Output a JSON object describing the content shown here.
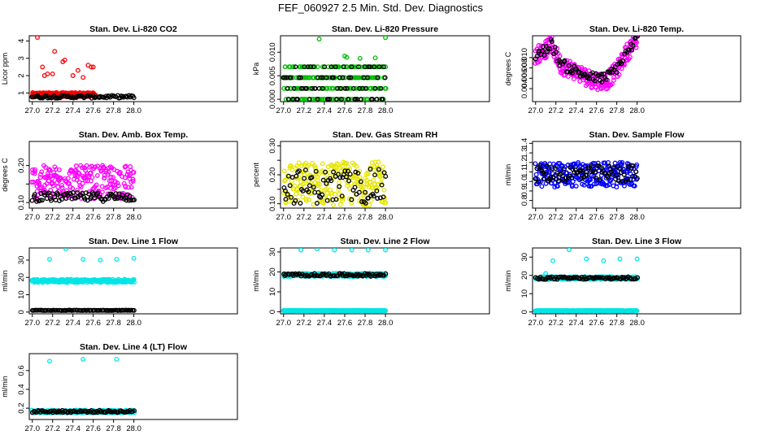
{
  "figure_title": "FEF_060927  2.5 Min. Std. Dev. Diagnostics",
  "chart_data": [
    {
      "type": "scatter",
      "title": "Stan. Dev. Li-820 CO2",
      "ylabel": "Licor ppm",
      "xlim": [
        26.97,
        29.02
      ],
      "ylim": [
        0.5,
        4.3
      ],
      "xticks": [
        27.0,
        27.2,
        27.4,
        27.6,
        27.8,
        28.0
      ],
      "yticks": [
        1,
        2,
        3,
        4
      ],
      "ytick_labels": [
        "1",
        "2",
        "3",
        "4"
      ],
      "series": [
        {
          "name": "red",
          "color": "#ff0000",
          "base": 0.9,
          "spread": 0.12,
          "spikes": [
            [
              27.05,
              4.2
            ],
            [
              27.1,
              2.5
            ],
            [
              27.15,
              2.1
            ],
            [
              27.22,
              3.4
            ],
            [
              27.3,
              2.8
            ],
            [
              27.32,
              2.9
            ],
            [
              27.45,
              2.3
            ],
            [
              27.55,
              2.6
            ],
            [
              27.58,
              2.5
            ],
            [
              27.6,
              2.5
            ],
            [
              27.2,
              2.1
            ],
            [
              27.12,
              2.0
            ],
            [
              27.4,
              2.0
            ],
            [
              27.5,
              1.9
            ]
          ],
          "x_end": 27.62
        },
        {
          "name": "black",
          "color": "#000000",
          "base": 0.78,
          "spread": 0.08,
          "spikes": []
        }
      ]
    },
    {
      "type": "scatter",
      "title": "Stan. Dev. Li-820 Pressure",
      "ylabel": "kPa",
      "xlim": [
        26.97,
        29.02
      ],
      "ylim": [
        -0.0005,
        0.0135
      ],
      "xticks": [
        27.0,
        27.2,
        27.4,
        27.6,
        27.8,
        28.0
      ],
      "yticks": [
        0.0,
        0.005,
        0.01
      ],
      "ytick_labels": [
        "0.000",
        "0.005",
        "0.010"
      ],
      "series": [
        {
          "name": "green",
          "color": "#00bb00",
          "levels": [
            0.0,
            0.0023,
            0.0046,
            0.0069
          ],
          "spikes": [
            [
              27.35,
              0.0128
            ],
            [
              28.0,
              0.0131
            ],
            [
              27.6,
              0.0092
            ],
            [
              27.62,
              0.0089
            ],
            [
              27.75,
              0.0087
            ],
            [
              27.9,
              0.0088
            ]
          ]
        },
        {
          "name": "black",
          "color": "#000000",
          "levels": [
            0.0,
            0.0023,
            0.0046,
            0.0069
          ],
          "spikes": []
        }
      ]
    },
    {
      "type": "scatter",
      "title": "Stan. Dev. Li-820 Temp.",
      "ylabel": "degrees C",
      "xlim": [
        26.97,
        29.02
      ],
      "ylim": [
        0.0015,
        0.0142
      ],
      "xticks": [
        27.0,
        27.2,
        27.4,
        27.6,
        27.8,
        28.0
      ],
      "yticks": [
        0.004,
        0.006,
        0.008,
        0.01
      ],
      "ytick_labels": [
        "0.004",
        "0.006",
        "0.008",
        "0.010"
      ],
      "series": [
        {
          "name": "magenta",
          "color": "#ff00ff",
          "trend": [
            [
              27.0,
              0.0105
            ],
            [
              27.1,
              0.0115
            ],
            [
              27.15,
              0.0128
            ],
            [
              27.25,
              0.0085
            ],
            [
              27.35,
              0.0078
            ],
            [
              27.5,
              0.0062
            ],
            [
              27.6,
              0.0055
            ],
            [
              27.7,
              0.0055
            ],
            [
              27.8,
              0.0075
            ],
            [
              27.9,
              0.011
            ],
            [
              28.0,
              0.0135
            ]
          ],
          "spread": 0.0017
        },
        {
          "name": "black",
          "color": "#000000",
          "trend": [
            [
              27.0,
              0.0105
            ],
            [
              27.1,
              0.0115
            ],
            [
              27.15,
              0.0128
            ],
            [
              27.25,
              0.0088
            ],
            [
              27.35,
              0.0078
            ],
            [
              27.5,
              0.0065
            ],
            [
              27.6,
              0.006
            ],
            [
              27.7,
              0.0062
            ],
            [
              27.8,
              0.008
            ],
            [
              27.9,
              0.011
            ],
            [
              28.0,
              0.0135
            ]
          ],
          "spread": 0.001
        }
      ]
    },
    {
      "type": "scatter",
      "title": "Stan. Dev. Amb. Box Temp.",
      "ylabel": "degrees C",
      "xlim": [
        26.97,
        29.02
      ],
      "ylim": [
        0.085,
        0.265
      ],
      "xticks": [
        27.0,
        27.2,
        27.4,
        27.6,
        27.8,
        28.0
      ],
      "yticks": [
        0.1,
        0.15,
        0.2
      ],
      "ytick_labels": [
        "0.10",
        "",
        "0.20"
      ],
      "series": [
        {
          "name": "magenta",
          "color": "#ff00ff",
          "base": 0.155,
          "spread": 0.045
        },
        {
          "name": "black",
          "color": "#000000",
          "base": 0.115,
          "spread": 0.012
        }
      ]
    },
    {
      "type": "scatter",
      "title": "Stan. Dev. Gas Stream RH",
      "ylabel": "percent",
      "xlim": [
        26.97,
        29.02
      ],
      "ylim": [
        0.085,
        0.315
      ],
      "xticks": [
        27.0,
        27.2,
        27.4,
        27.6,
        27.8,
        28.0
      ],
      "yticks": [
        0.1,
        0.15,
        0.2,
        0.25,
        0.3
      ],
      "ytick_labels": [
        "0.10",
        "",
        "0.20",
        "",
        "0.30"
      ],
      "series": [
        {
          "name": "yellow",
          "color": "#e6e600",
          "base": 0.17,
          "spread": 0.075
        },
        {
          "name": "black",
          "color": "#000000",
          "base": 0.16,
          "spread": 0.06
        }
      ]
    },
    {
      "type": "scatter",
      "title": "Stan. Dev. Sample Flow",
      "ylabel": "ml/min",
      "xlim": [
        26.97,
        29.02
      ],
      "ylim": [
        0.72,
        1.42
      ],
      "xticks": [
        27.0,
        27.2,
        27.4,
        27.6,
        27.8,
        28.0
      ],
      "yticks": [
        0.8,
        0.9,
        1.0,
        1.1,
        1.2,
        1.3,
        1.4
      ],
      "ytick_labels": [
        "0.8",
        "0.9",
        "1.0",
        "1.1",
        "1.2",
        "1.3",
        "1.4"
      ],
      "series": [
        {
          "name": "blue",
          "color": "#0000ff",
          "base": 1.07,
          "spread": 0.13
        },
        {
          "name": "black",
          "color": "#000000",
          "base": 1.08,
          "spread": 0.09
        }
      ]
    },
    {
      "type": "scatter",
      "title": "Stan. Dev. Line 1 Flow",
      "ylabel": "ml/min",
      "xlim": [
        26.97,
        29.02
      ],
      "ylim": [
        -1,
        37
      ],
      "xticks": [
        27.0,
        27.2,
        27.4,
        27.6,
        27.8,
        28.0
      ],
      "yticks": [
        0,
        10,
        20,
        30
      ],
      "ytick_labels": [
        "0",
        "10",
        "20",
        "30"
      ],
      "series": [
        {
          "name": "cyan",
          "color": "#00e5e5",
          "base": 18.0,
          "spread": 0.9,
          "spikes": [
            [
              27.17,
              30.5
            ],
            [
              27.33,
              36.5
            ],
            [
              27.5,
              30.5
            ],
            [
              27.67,
              30.0
            ],
            [
              27.83,
              30.5
            ],
            [
              28.0,
              31.0
            ]
          ]
        },
        {
          "name": "black",
          "color": "#000000",
          "base": 1.0,
          "spread": 0.1
        }
      ]
    },
    {
      "type": "scatter",
      "title": "Stan. Dev. Line 2 Flow",
      "ylabel": "ml/min",
      "xlim": [
        26.97,
        29.02
      ],
      "ylim": [
        -1,
        32
      ],
      "xticks": [
        27.0,
        27.2,
        27.4,
        27.6,
        27.8,
        28.0
      ],
      "yticks": [
        0,
        10,
        20,
        30
      ],
      "ytick_labels": [
        "0",
        "10",
        "20",
        "30"
      ],
      "series": [
        {
          "name": "cyan-high",
          "color": "#00e5e5",
          "base": 18.5,
          "spread": 0.8,
          "spikes": [
            [
              27.17,
              31.0
            ],
            [
              27.33,
              31.5
            ],
            [
              27.5,
              31.0
            ],
            [
              27.67,
              31.0
            ],
            [
              27.83,
              31.0
            ],
            [
              28.0,
              31.0
            ]
          ]
        },
        {
          "name": "cyan-low",
          "color": "#00e5e5",
          "base": 0.6,
          "spread": 0.1
        },
        {
          "name": "black",
          "color": "#000000",
          "base": 18.5,
          "spread": 0.7
        }
      ]
    },
    {
      "type": "scatter",
      "title": "Stan. Dev. Line 3 Flow",
      "ylabel": "ml/min",
      "xlim": [
        26.97,
        29.02
      ],
      "ylim": [
        -1,
        35
      ],
      "xticks": [
        27.0,
        27.2,
        27.4,
        27.6,
        27.8,
        28.0
      ],
      "yticks": [
        0,
        10,
        20,
        30
      ],
      "ytick_labels": [
        "0",
        "10",
        "20",
        "30"
      ],
      "series": [
        {
          "name": "cyan-high",
          "color": "#00e5e5",
          "base": 18.5,
          "spread": 0.8,
          "spikes": [
            [
              27.17,
              28.0
            ],
            [
              27.33,
              34.0
            ],
            [
              27.5,
              29.0
            ],
            [
              27.67,
              28.0
            ],
            [
              27.83,
              29.0
            ],
            [
              28.0,
              29.0
            ],
            [
              27.1,
              21.0
            ]
          ]
        },
        {
          "name": "cyan-low",
          "color": "#00e5e5",
          "base": 0.7,
          "spread": 0.1
        },
        {
          "name": "black",
          "color": "#000000",
          "base": 18.5,
          "spread": 0.7
        }
      ]
    },
    {
      "type": "scatter",
      "title": "Stan. Dev. Line 4 (LT) Flow",
      "ylabel": "ml/min",
      "xlim": [
        26.97,
        29.02
      ],
      "ylim": [
        0.08,
        0.78
      ],
      "xticks": [
        27.0,
        27.2,
        27.4,
        27.6,
        27.8,
        28.0
      ],
      "yticks": [
        0.2,
        0.4,
        0.6
      ],
      "ytick_labels": [
        "0.2",
        "0.4",
        "0.6"
      ],
      "series": [
        {
          "name": "cyan",
          "color": "#00e5e5",
          "base": 0.165,
          "spread": 0.015,
          "spikes": [
            [
              27.17,
              0.7
            ],
            [
              27.5,
              0.72
            ],
            [
              27.83,
              0.72
            ]
          ]
        },
        {
          "name": "black",
          "color": "#000000",
          "base": 0.165,
          "spread": 0.012
        }
      ]
    }
  ]
}
